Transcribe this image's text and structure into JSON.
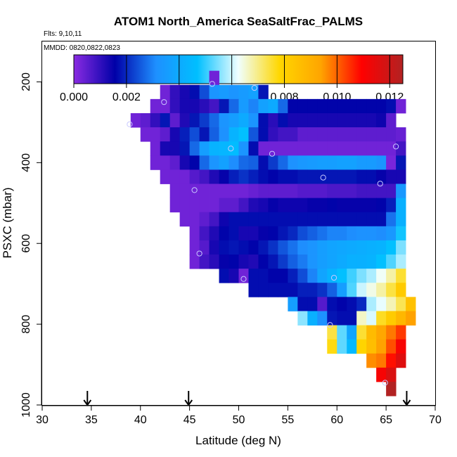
{
  "chart_data": {
    "type": "heatmap",
    "title": "ATOM1 North_America SeaSaltFrac_PALMS",
    "notes": {
      "flights": "Flts: 9,10,11",
      "dates": "MMDD: 0820,0822,0823"
    },
    "xlabel": "Latitude (deg N)",
    "ylabel": "PSXC (mbar)",
    "xlim": [
      30,
      70
    ],
    "ylim": [
      1000,
      100
    ],
    "x_ticks": [
      30,
      35,
      40,
      45,
      50,
      55,
      60,
      65,
      70
    ],
    "x_tick_labels": [
      "30",
      "35",
      "40",
      "45",
      "50",
      "55",
      "60",
      "65",
      "70"
    ],
    "y_ticks": [
      200,
      400,
      600,
      800,
      1000
    ],
    "y_tick_labels": [
      "200",
      "400",
      "600",
      "800",
      "1000"
    ],
    "colorbar": {
      "range": [
        0,
        0.0125
      ],
      "ticks": [
        0,
        0.002,
        0.004,
        0.006,
        0.008,
        0.01,
        0.012
      ],
      "tick_labels": [
        "0.000",
        "0.002",
        "0.004",
        "0.006",
        "0.008",
        "0.010",
        "0.012"
      ],
      "stops": [
        "#8a2be2",
        "#0000a8",
        "#1e90ff",
        "#00bfff",
        "#f0ffff",
        "#ffd700",
        "#ffa500",
        "#ff0000",
        "#b22222"
      ]
    },
    "grid": false,
    "lat_bin_width": 1,
    "pressure_bin_height": 35,
    "rows": [
      {
        "p": 190,
        "lat_start": 47,
        "values": [
          0.0003
        ]
      },
      {
        "p": 225,
        "lat_start": 42,
        "values": [
          0.0003,
          0.001,
          0.0013,
          0.0017,
          0.0024,
          0.0033,
          0.0035,
          0.0033,
          0.0035,
          0.0037,
          0.0018
        ]
      },
      {
        "p": 260,
        "lat_start": 41,
        "values": [
          0.0003,
          0.0003,
          0.001,
          0.0013,
          0.0013,
          0.0011,
          0.0008,
          0.0018,
          0.0027,
          0.0035,
          0.003,
          0.0037,
          0.004,
          0.0027,
          0.0016,
          0.0016,
          0.0016,
          0.0016,
          0.0016,
          0.0016,
          0.0016,
          0.0016,
          0.0016,
          0.0016,
          0.0017,
          0.0003
        ]
      },
      {
        "p": 295,
        "lat_start": 39,
        "values": [
          0.0003,
          0.0005,
          0.001,
          0.0018,
          0.0005,
          0.0012,
          0.0018,
          0.0022,
          0.0027,
          0.0033,
          0.0036,
          0.004,
          0.0033,
          0.0017,
          0.0011,
          0.0017,
          0.0013,
          0.0013,
          0.0013,
          0.0013,
          0.0013,
          0.0013,
          0.0013,
          0.0013,
          0.0013,
          0.0014,
          0.0005
        ]
      },
      {
        "p": 330,
        "lat_start": 40,
        "values": [
          0.0003,
          0.0003,
          0.0005,
          0.0013,
          0.0019,
          0.0024,
          0.0018,
          0.0026,
          0.0032,
          0.0043,
          0.0047,
          0.0025,
          0.0017,
          0.001,
          0.0008,
          0.0008,
          0.0005,
          0.0005,
          0.0005,
          0.0005,
          0.0005,
          0.0005,
          0.0005,
          0.0005,
          0.0005,
          0.0005,
          0.0004
        ]
      },
      {
        "p": 365,
        "lat_start": 41,
        "values": [
          0.0003,
          0.0013,
          0.0013,
          0.0018,
          0.0027,
          0.0036,
          0.0043,
          0.0044,
          0.0046,
          0.0033,
          0.0017,
          0.0003,
          0.0003,
          0.0003,
          0.0003,
          0.0003,
          0.0003,
          0.0003,
          0.0003,
          0.0003,
          0.0003,
          0.0003,
          0.0003,
          0.0003,
          0.0003,
          0.0008
        ]
      },
      {
        "p": 400,
        "lat_start": 41,
        "values": [
          0.0003,
          0.0003,
          0.0005,
          0.0013,
          0.0016,
          0.0027,
          0.0033,
          0.0037,
          0.0031,
          0.0027,
          0.0026,
          0.0017,
          0.0022,
          0.0027,
          0.0032,
          0.0034,
          0.0035,
          0.0036,
          0.0036,
          0.0037,
          0.0037,
          0.0035,
          0.0035,
          0.0033,
          0.0002,
          0.0018
        ]
      },
      {
        "p": 435,
        "lat_start": 42,
        "values": [
          0.0003,
          0.0003,
          0.0003,
          0.0006,
          0.0008,
          0.0012,
          0.0015,
          0.0019,
          0.0021,
          0.0019,
          0.0017,
          0.0016,
          0.0017,
          0.0017,
          0.0018,
          0.0018,
          0.0018,
          0.0018,
          0.0018,
          0.0018,
          0.0017,
          0.0017,
          0.0015,
          0.0013,
          0.0013
        ]
      },
      {
        "p": 470,
        "lat_start": 43,
        "values": [
          0.0003,
          0.0003,
          0.0003,
          0.0003,
          0.0003,
          0.0003,
          0.0003,
          0.0003,
          0.0004,
          0.0005,
          0.0005,
          0.0005,
          0.0005,
          0.0006,
          0.0006,
          0.0006,
          0.0007,
          0.0007,
          0.0007,
          0.0008,
          0.0008,
          0.0008,
          0.0008,
          0.0034
        ]
      },
      {
        "p": 505,
        "lat_start": 43,
        "values": [
          0.0003,
          0.0003,
          0.0003,
          0.0003,
          0.0003,
          0.0005,
          0.0005,
          0.0008,
          0.0012,
          0.0013,
          0.0015,
          0.0014,
          0.0014,
          0.0014,
          0.0015,
          0.0015,
          0.0016,
          0.0015,
          0.0015,
          0.0015,
          0.0015,
          0.0016,
          0.0019,
          0.0042
        ]
      },
      {
        "p": 540,
        "lat_start": 44,
        "values": [
          0.0003,
          0.0003,
          0.0005,
          0.0008,
          0.0014,
          0.0017,
          0.0017,
          0.0017,
          0.0017,
          0.0017,
          0.0017,
          0.0017,
          0.0017,
          0.0017,
          0.0017,
          0.0017,
          0.0017,
          0.0017,
          0.0017,
          0.0017,
          0.0017,
          0.0028,
          0.0042
        ]
      },
      {
        "p": 575,
        "lat_start": 45,
        "values": [
          0.0003,
          0.0008,
          0.0012,
          0.0016,
          0.0017,
          0.0013,
          0.0013,
          0.0015,
          0.0016,
          0.0018,
          0.002,
          0.0024,
          0.0026,
          0.0028,
          0.003,
          0.003,
          0.0031,
          0.0032,
          0.0032,
          0.0031,
          0.0034,
          0.0048
        ]
      },
      {
        "p": 610,
        "lat_start": 45,
        "values": [
          0.0003,
          0.0006,
          0.0013,
          0.0017,
          0.0018,
          0.0017,
          0.0016,
          0.0018,
          0.0021,
          0.0025,
          0.0028,
          0.0031,
          0.0033,
          0.0036,
          0.0038,
          0.0039,
          0.004,
          0.0041,
          0.0042,
          0.0043,
          0.0047,
          0.0055
        ]
      },
      {
        "p": 645,
        "lat_start": 45,
        "values": [
          0.0003,
          0.0008,
          0.0011,
          0.0015,
          0.0016,
          0.0013,
          0.0012,
          0.0016,
          0.0018,
          0.0022,
          0.0026,
          0.0029,
          0.0033,
          0.0036,
          0.0038,
          0.004,
          0.0042,
          0.0042,
          0.0043,
          0.0047,
          0.0052,
          0.0058
        ]
      },
      {
        "p": 680,
        "lat_start": 48,
        "values": [
          0.0017,
          0.0013,
          0.0003,
          0.0017,
          0.0017,
          0.0016,
          0.0016,
          0.0019,
          0.0024,
          0.003,
          0.0038,
          0.0043,
          0.0047,
          0.0051,
          0.0055,
          0.0058,
          0.0063,
          0.0068,
          0.0075
        ]
      },
      {
        "p": 715,
        "lat_start": 51,
        "values": [
          0.0017,
          0.0017,
          0.0017,
          0.0017,
          0.0017,
          0.0019,
          0.0019,
          0.0021,
          0.0026,
          0.0036,
          0.0052,
          0.006,
          0.0064,
          0.0068,
          0.0074,
          0.0082
        ]
      },
      {
        "p": 750,
        "lat_start": 55,
        "values": [
          0.0036,
          0.0017,
          0.0017,
          0.0006,
          0.0017,
          0.0016,
          0.0017,
          0.002,
          0.0058,
          0.0062,
          0.0067,
          0.0073,
          0.0085
        ]
      },
      {
        "p": 785,
        "lat_start": 56,
        "values": [
          0.0056,
          0.0042,
          0.0032,
          0.0018,
          0.0017,
          0.0017,
          0.0066,
          0.0061,
          0.0076,
          0.0082,
          0.0088,
          0.0094
        ]
      },
      {
        "p": 820,
        "lat_start": 59,
        "values": [
          0.0074,
          0.0053,
          0.0038,
          0.0075,
          0.0087,
          0.0093,
          0.0098,
          0.0104
        ]
      },
      {
        "p": 855,
        "lat_start": 59,
        "values": [
          0.0077,
          0.0053,
          0.0045,
          0.0079,
          0.0086,
          0.0094,
          0.0102,
          0.0111
        ]
      },
      {
        "p": 890,
        "lat_start": 63,
        "values": [
          0.0096,
          0.0098,
          0.0108,
          0.0116
        ]
      },
      {
        "p": 925,
        "lat_start": 64,
        "values": [
          0.0111,
          0.0117
        ]
      },
      {
        "p": 960,
        "lat_start": 65,
        "values": [
          0.0126
        ]
      }
    ],
    "profiles": [
      {
        "lat": 47.3,
        "p": 205
      },
      {
        "lat": 51.6,
        "p": 215
      },
      {
        "lat": 42.4,
        "p": 250
      },
      {
        "lat": 38.9,
        "p": 305
      },
      {
        "lat": 66,
        "p": 360
      },
      {
        "lat": 49.2,
        "p": 365
      },
      {
        "lat": 53.4,
        "p": 378
      },
      {
        "lat": 58.6,
        "p": 437
      },
      {
        "lat": 64.4,
        "p": 452
      },
      {
        "lat": 45.5,
        "p": 468
      },
      {
        "lat": 46,
        "p": 625
      },
      {
        "lat": 50.5,
        "p": 688
      },
      {
        "lat": 59.7,
        "p": 685
      },
      {
        "lat": 59.3,
        "p": 802
      },
      {
        "lat": 64.9,
        "p": 945
      }
    ],
    "arrows": [
      34.6,
      44.9,
      67.1
    ],
    "marker_color": "#c8c8ff"
  }
}
